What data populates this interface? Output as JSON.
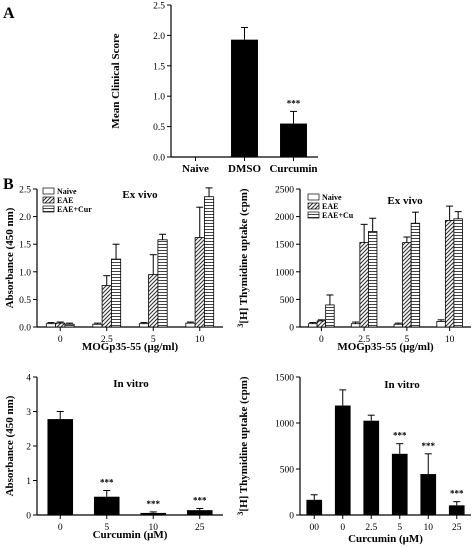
{
  "panel_labels": [
    "A",
    "B"
  ],
  "chart_data": [
    {
      "id": "A",
      "type": "bar",
      "title": "",
      "xlabel": "",
      "ylabel": "Mean Clinical Score",
      "ylim": [
        0,
        2.5
      ],
      "yticks": [
        "0.0",
        "0.5",
        "1.0",
        "1.5",
        "2.0",
        "2.5"
      ],
      "categories": [
        "Naive",
        "DMSO",
        "Curcumin"
      ],
      "values": [
        0.0,
        1.93,
        0.55
      ],
      "errors": [
        0.0,
        0.2,
        0.2
      ],
      "annotations": [
        "",
        "",
        "***"
      ],
      "color": "#000000",
      "grid": false
    },
    {
      "id": "B1",
      "type": "bar",
      "title": "Ex vivo",
      "xlabel": "MOGp35-55 (μg/ml)",
      "ylabel": "Absorbance (450 nm)",
      "ylim": [
        0,
        2.5
      ],
      "yticks": [
        "0.0",
        "0.5",
        "1.0",
        "1.5",
        "2.0",
        "2.5"
      ],
      "categories": [
        "0",
        "2.5",
        "5",
        "10"
      ],
      "legend": {
        "position": "top-left",
        "entries": [
          "Naive",
          "EAE",
          "EAE+Cur"
        ]
      },
      "series": [
        {
          "name": "Naive",
          "values": [
            0.06,
            0.05,
            0.06,
            0.07
          ],
          "errors": [
            0.02,
            0.02,
            0.02,
            0.02
          ]
        },
        {
          "name": "EAE",
          "values": [
            0.07,
            0.75,
            0.95,
            1.62
          ],
          "errors": [
            0.02,
            0.18,
            0.36,
            0.55
          ]
        },
        {
          "name": "EAE+Cur",
          "values": [
            0.05,
            1.23,
            1.58,
            2.36
          ],
          "errors": [
            0.02,
            0.27,
            0.1,
            0.16
          ]
        }
      ],
      "grid": false
    },
    {
      "id": "B2",
      "type": "bar",
      "title": "Ex vivo",
      "xlabel": "MOGp35-55 (μg/ml)",
      "ylabel_prefix": "3",
      "ylabel": "[H] Thymidine uptake (cpm)",
      "ylim": [
        0,
        2500
      ],
      "yticks": [
        "0",
        "500",
        "1000",
        "1500",
        "2000",
        "2500"
      ],
      "categories": [
        "0",
        "2.5",
        "5",
        "10"
      ],
      "legend": {
        "position": "top-left",
        "entries": [
          "Naive",
          "EAE",
          "EAE+Cu"
        ]
      },
      "series": [
        {
          "name": "Naive",
          "values": [
            60,
            60,
            50,
            100
          ],
          "errors": [
            20,
            30,
            20,
            30
          ]
        },
        {
          "name": "EAE",
          "values": [
            110,
            1530,
            1530,
            1930
          ],
          "errors": [
            20,
            330,
            100,
            260
          ]
        },
        {
          "name": "EAE+Cu",
          "values": [
            400,
            1730,
            1880,
            1960
          ],
          "errors": [
            180,
            240,
            200,
            130
          ]
        }
      ],
      "grid": false
    },
    {
      "id": "B3",
      "type": "bar",
      "title": "In vitro",
      "xlabel": "Curcumin (μM)",
      "ylabel": "Absorbance (450 nm)",
      "ylim": [
        0,
        4
      ],
      "yticks": [
        "0",
        "1",
        "2",
        "3",
        "4"
      ],
      "categories": [
        "0",
        "5",
        "10",
        "25"
      ],
      "values": [
        2.78,
        0.53,
        0.06,
        0.14
      ],
      "errors": [
        0.22,
        0.18,
        0.03,
        0.05
      ],
      "annotations": [
        "",
        "***",
        "***",
        "***"
      ],
      "color": "#000000",
      "grid": false
    },
    {
      "id": "B4",
      "type": "bar",
      "title": "In vitro",
      "xlabel": "Curcumin (μM)",
      "ylabel_prefix": "3",
      "ylabel": "[H] Thymidine uptake (cpm)",
      "ylim": [
        0,
        1500
      ],
      "yticks": [
        "0",
        "500",
        "1000",
        "1500"
      ],
      "categories": [
        "00",
        "0",
        "2.5",
        "5",
        "10",
        "25"
      ],
      "values": [
        165,
        1190,
        1025,
        665,
        445,
        105
      ],
      "errors": [
        55,
        170,
        60,
        110,
        220,
        40
      ],
      "annotations": [
        "",
        "",
        "",
        "***",
        "***",
        "***"
      ],
      "color": "#000000",
      "grid": false
    }
  ]
}
